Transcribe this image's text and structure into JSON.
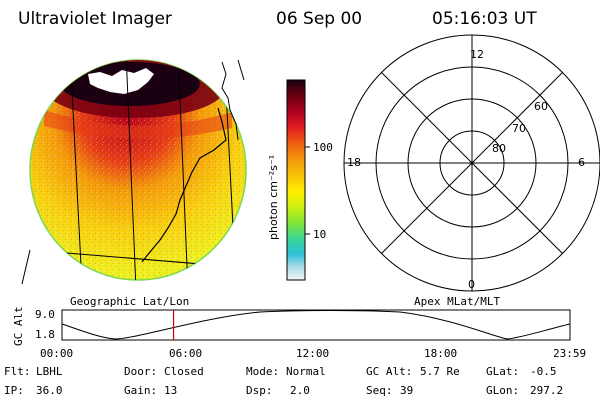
{
  "header": {
    "instrument": "Ultraviolet Imager",
    "date": "06 Sep 00",
    "time": "05:16:03 UT"
  },
  "colorbar": {
    "unit_label": "photon cm⁻²s⁻¹",
    "ticks": [
      "100",
      "10"
    ],
    "palette": [
      "#1a0010",
      "#6a0010",
      "#b00020",
      "#e22020",
      "#f06010",
      "#f39a0a",
      "#f7c40a",
      "#fff000",
      "#c9ef12",
      "#7ce23b",
      "#38d49a",
      "#30c0d8",
      "#a4d8e6",
      "#f4f6f8"
    ]
  },
  "polar": {
    "mlt_labels": {
      "top": "12",
      "bottom": "0",
      "left": "18",
      "right": "6"
    },
    "lat_labels": [
      "60",
      "70",
      "80"
    ]
  },
  "coords": {
    "left_label": "Geographic Lat/Lon",
    "right_label": "Apex MLat/MLT"
  },
  "timeline": {
    "ylabel": "GC Alt",
    "yticks": [
      "9.0",
      "1.8"
    ],
    "xticks": [
      "00:00",
      "06:00",
      "12:00",
      "18:00",
      "23:59"
    ],
    "marker_hours": 5.27,
    "marker_color": "#cc0000"
  },
  "status": {
    "row1": [
      {
        "label": "Flt:",
        "value": "LBHL"
      },
      {
        "label": "Door:",
        "value": "Closed"
      },
      {
        "label": "Mode:",
        "value": "Normal"
      },
      {
        "label": "GC Alt:",
        "value": "5.7 Re"
      },
      {
        "label": "GLat:",
        "value": "-0.5"
      }
    ],
    "row2": [
      {
        "label": "IP:",
        "value": "36.0"
      },
      {
        "label": "Gain:",
        "value": "13"
      },
      {
        "label": "Dsp:",
        "value": "2.0"
      },
      {
        "label": "Seq:",
        "value": "39"
      },
      {
        "label": "GLon:",
        "value": "297.2"
      }
    ]
  }
}
